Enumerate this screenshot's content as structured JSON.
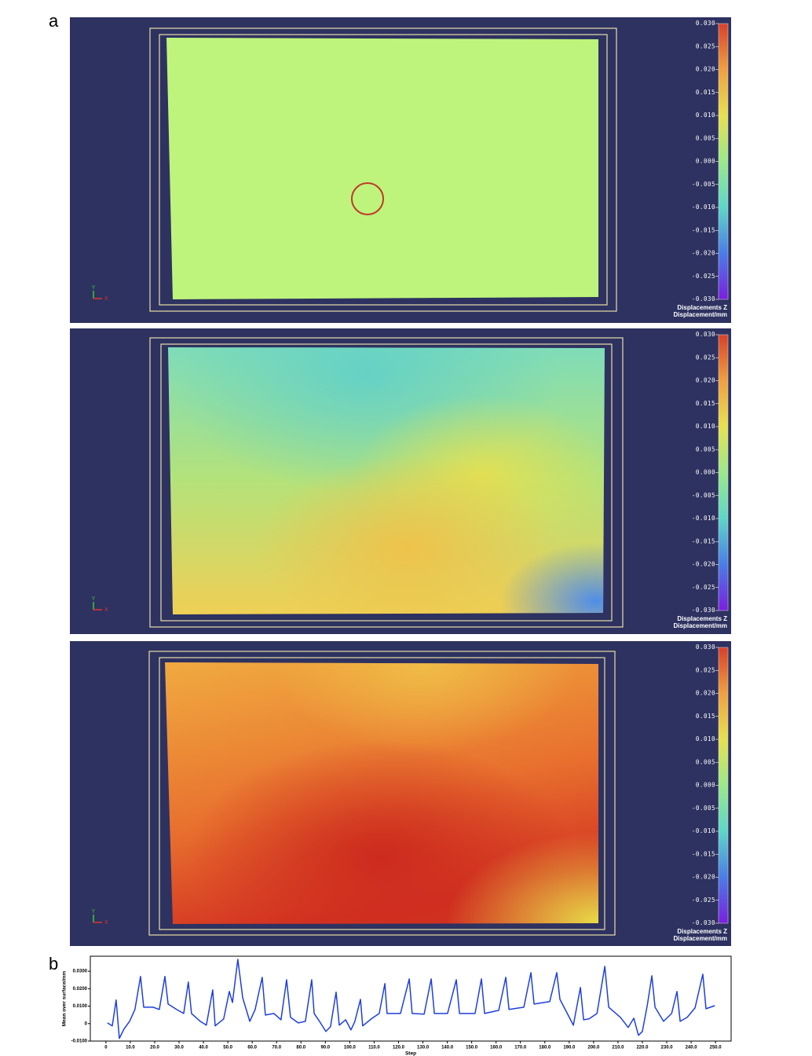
{
  "chart_data": [
    {
      "type": "heatmap",
      "panel_label": "a",
      "colorbar_title": "Displacements Z",
      "colorbar_unit": "Displacement/mm",
      "clim": [
        -0.03,
        0.03
      ],
      "cticks": [
        {
          "value": 0.03,
          "label": "0.030"
        },
        {
          "value": 0.025,
          "label": "0.025"
        },
        {
          "value": 0.02,
          "label": "0.020"
        },
        {
          "value": 0.015,
          "label": "0.015"
        },
        {
          "value": 0.01,
          "label": "0.010"
        },
        {
          "value": 0.005,
          "label": "0.005"
        },
        {
          "value": 0,
          "label": "0.000"
        },
        {
          "value": -0.005,
          "label": "-0.005"
        },
        {
          "value": -0.01,
          "label": "-0.010"
        },
        {
          "value": -0.015,
          "label": "-0.015"
        },
        {
          "value": -0.02,
          "label": "-0.020"
        },
        {
          "value": -0.025,
          "label": "-0.025"
        },
        {
          "value": -0.03,
          "label": "-0.030"
        }
      ],
      "colormap": [
        "#7b1fe0",
        "#4a7de8",
        "#5fd6c8",
        "#9be88a",
        "#e8e050",
        "#f0a040",
        "#d8402a"
      ],
      "axis_triad_labels": [
        "Y",
        "X"
      ]
    },
    {
      "type": "heatmap",
      "colorbar_title": "Displacements Z",
      "colorbar_unit": "Displacement/mm",
      "clim": [
        -0.03,
        0.03
      ],
      "cticks": [
        {
          "value": 0.03,
          "label": "0.030"
        },
        {
          "value": 0.025,
          "label": "0.025"
        },
        {
          "value": 0.02,
          "label": "0.020"
        },
        {
          "value": 0.015,
          "label": "0.015"
        },
        {
          "value": 0.01,
          "label": "0.010"
        },
        {
          "value": 0.005,
          "label": "0.005"
        },
        {
          "value": 0,
          "label": "0.000"
        },
        {
          "value": -0.005,
          "label": "-0.005"
        },
        {
          "value": -0.01,
          "label": "-0.010"
        },
        {
          "value": -0.015,
          "label": "-0.015"
        },
        {
          "value": -0.02,
          "label": "-0.020"
        },
        {
          "value": -0.025,
          "label": "-0.025"
        },
        {
          "value": -0.03,
          "label": "-0.030"
        }
      ],
      "colormap": [
        "#7b1fe0",
        "#4a7de8",
        "#5fd6c8",
        "#9be88a",
        "#e8e050",
        "#f0a040",
        "#d8402a"
      ],
      "axis_triad_labels": [
        "Y",
        "X"
      ]
    },
    {
      "type": "heatmap",
      "colorbar_title": "Displacements Z",
      "colorbar_unit": "Displacement/mm",
      "clim": [
        -0.03,
        0.03
      ],
      "cticks": [
        {
          "value": 0.03,
          "label": "0.030"
        },
        {
          "value": 0.025,
          "label": "0.025"
        },
        {
          "value": 0.02,
          "label": "0.020"
        },
        {
          "value": 0.015,
          "label": "0.015"
        },
        {
          "value": 0.01,
          "label": "0.010"
        },
        {
          "value": 0.005,
          "label": "0.005"
        },
        {
          "value": 0,
          "label": "0.000"
        },
        {
          "value": -0.005,
          "label": "-0.005"
        },
        {
          "value": -0.01,
          "label": "-0.010"
        },
        {
          "value": -0.015,
          "label": "-0.015"
        },
        {
          "value": -0.02,
          "label": "-0.020"
        },
        {
          "value": -0.025,
          "label": "-0.025"
        },
        {
          "value": -0.03,
          "label": "-0.030"
        }
      ],
      "colormap": [
        "#7b1fe0",
        "#4a7de8",
        "#5fd6c8",
        "#9be88a",
        "#e8e050",
        "#f0a040",
        "#d8402a"
      ],
      "axis_triad_labels": [
        "Y",
        "X"
      ]
    },
    {
      "type": "line",
      "panel_label": "b",
      "y_label": "Mean over surface/mm",
      "x_label": "Step",
      "xlim": [
        -6.4,
        256.4
      ],
      "ylim": [
        -0.01,
        0.0386
      ],
      "xticks": [
        0,
        {
          "value": 10,
          "label": "10.0"
        },
        {
          "value": 20,
          "label": "20.0"
        },
        {
          "value": 30,
          "label": "30.0"
        },
        {
          "value": 40,
          "label": "40.0"
        },
        {
          "value": 50,
          "label": "50.0"
        },
        {
          "value": 60,
          "label": "60.0"
        },
        {
          "value": 70,
          "label": "70.0"
        },
        {
          "value": 80,
          "label": "80.0"
        },
        {
          "value": 90,
          "label": "90.0"
        },
        {
          "value": 100,
          "label": "100.0"
        },
        {
          "value": 110,
          "label": "110.0"
        },
        {
          "value": 120,
          "label": "120.0"
        },
        {
          "value": 130,
          "label": "130.0"
        },
        {
          "value": 140,
          "label": "140.0"
        },
        {
          "value": 150,
          "label": "150.0"
        },
        {
          "value": 160,
          "label": "160.0"
        },
        {
          "value": 170,
          "label": "170.0"
        },
        {
          "value": 180,
          "label": "180.0"
        },
        {
          "value": 190,
          "label": "190.0"
        },
        {
          "value": 200,
          "label": "200.0"
        },
        {
          "value": 210,
          "label": "210.0"
        },
        {
          "value": 220,
          "label": "220.0"
        },
        {
          "value": 230,
          "label": "230.0"
        },
        {
          "value": 240,
          "label": "240.0"
        },
        {
          "value": 250,
          "label": "250.0"
        }
      ],
      "yticks": [
        {
          "value": 0.03,
          "label": "0.0300"
        },
        {
          "value": 0.02,
          "label": "0.0200"
        },
        {
          "value": 0.01,
          "label": "0.0100"
        },
        0,
        {
          "value": -0.01,
          "label": "-0.0100"
        }
      ],
      "x": [
        0.6,
        2.6,
        4.2,
        5.5,
        7.4,
        9.7,
        11.9,
        14.2,
        15.5,
        19.3,
        21.9,
        24.2,
        25.5,
        29.0,
        31.9,
        33.8,
        35.1,
        38.7,
        41.2,
        43.8,
        44.8,
        48.3,
        50.6,
        51.9,
        54.1,
        56.1,
        59.0,
        61.2,
        64.1,
        65.4,
        68.9,
        71.8,
        74.1,
        75.7,
        78.9,
        81.8,
        84.4,
        85.4,
        87.6,
        90.2,
        92.1,
        94.4,
        95.7,
        98.3,
        100.5,
        102.1,
        104.4,
        105.3,
        109.2,
        112.1,
        114.4,
        115.3,
        120.8,
        124.4,
        125.6,
        130.5,
        133.4,
        134.7,
        140.1,
        143.7,
        145.0,
        151.4,
        154.0,
        155.3,
        161.1,
        164.0,
        165.3,
        171.4,
        174.3,
        175.6,
        182.0,
        184.9,
        186.2,
        191.7,
        194.6,
        195.9,
        198.1,
        201.4,
        204.6,
        206.2,
        211.0,
        214.2,
        216.5,
        218.4,
        220.0,
        222.0,
        223.9,
        225.2,
        228.7,
        232.0,
        234.2,
        235.5,
        238.4,
        241.6,
        244.8,
        246.1,
        249.7
      ],
      "series": [
        {
          "color": "#1f3fdc",
          "values": [
            0.0004,
            -0.0013,
            0.0135,
            -0.0085,
            -0.0031,
            0.0013,
            0.0081,
            0.027,
            0.0094,
            0.0094,
            0.0081,
            0.027,
            0.0112,
            0.0081,
            0.0058,
            0.0238,
            0.0058,
            0.0013,
            -0.0009,
            0.0193,
            -0.0013,
            0.0027,
            0.0184,
            0.0121,
            0.0368,
            0.0148,
            0.0013,
            0.0081,
            0.0265,
            0.0049,
            0.0058,
            0.0022,
            0.0251,
            0.0036,
            0.0004,
            0.0013,
            0.0251,
            0.0058,
            0.0013,
            -0.0045,
            -0.0018,
            0.018,
            -0.0009,
            0.0022,
            -0.0036,
            0.0013,
            0.0139,
            -0.0013,
            0.0031,
            0.0058,
            0.0229,
            0.0058,
            0.0058,
            0.0256,
            0.0058,
            0.0054,
            0.0256,
            0.0058,
            0.0058,
            0.0251,
            0.0058,
            0.0058,
            0.0256,
            0.0058,
            0.0076,
            0.0265,
            0.0081,
            0.0094,
            0.0292,
            0.0112,
            0.0126,
            0.0292,
            0.0139,
            -0.0009,
            0.0207,
            0.0022,
            0.0027,
            0.0058,
            0.0328,
            0.0094,
            0.0036,
            -0.0022,
            0.0031,
            -0.0067,
            -0.0045,
            0.0103,
            0.0274,
            0.0094,
            0.0013,
            0.0058,
            0.0184,
            0.0013,
            0.0036,
            0.009,
            0.0283,
            0.0085,
            0.0103
          ]
        }
      ]
    }
  ]
}
